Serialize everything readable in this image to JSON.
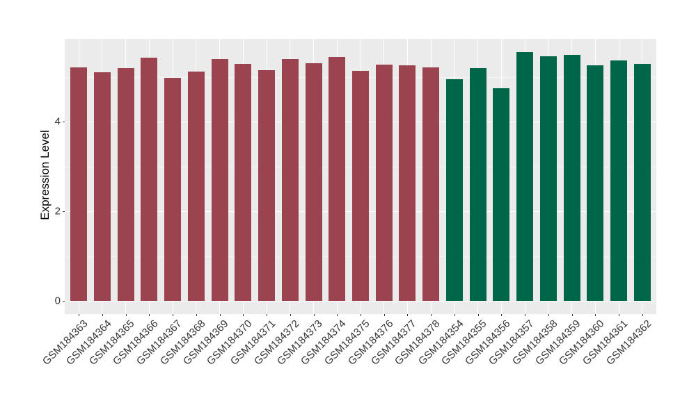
{
  "style": {
    "figure_bg": "#ffffff",
    "panel_bg": "#ebebeb",
    "grid_major": "#ffffff",
    "grid_minor": "#f5f5f5",
    "axis_text_color": "#333333",
    "axis_title_color": "#000000",
    "tick_mark_color": "#333333",
    "maroon": "#9b4450",
    "green": "#00664a"
  },
  "chart_data": {
    "type": "bar",
    "title": "",
    "xlabel": "",
    "ylabel": "Expression Level",
    "ylim": [
      -0.29,
      5.84
    ],
    "yticks": [
      0,
      2,
      4
    ],
    "y_minor_ticks": [
      1,
      3,
      5
    ],
    "grid": "ggplot2-style: white major and faint minor gridlines on gray panel",
    "legend_position": "none",
    "categories": [
      "GSM184363",
      "GSM184364",
      "GSM184365",
      "GSM184366",
      "GSM184367",
      "GSM184368",
      "GSM184369",
      "GSM184370",
      "GSM184371",
      "GSM184372",
      "GSM184373",
      "GSM184374",
      "GSM184375",
      "GSM184376",
      "GSM184377",
      "GSM184378",
      "GSM184354",
      "GSM184355",
      "GSM184356",
      "GSM184357",
      "GSM184358",
      "GSM184359",
      "GSM184360",
      "GSM184361",
      "GSM184362"
    ],
    "values": [
      5.21,
      5.1,
      5.2,
      5.43,
      4.98,
      5.11,
      5.39,
      5.28,
      5.14,
      5.4,
      5.3,
      5.44,
      5.13,
      5.27,
      5.26,
      5.21,
      4.95,
      5.19,
      4.75,
      5.55,
      5.45,
      5.49,
      5.26,
      5.37,
      5.29
    ],
    "bar_colors": [
      "#9b4450",
      "#9b4450",
      "#9b4450",
      "#9b4450",
      "#9b4450",
      "#9b4450",
      "#9b4450",
      "#9b4450",
      "#9b4450",
      "#9b4450",
      "#9b4450",
      "#9b4450",
      "#9b4450",
      "#9b4450",
      "#9b4450",
      "#9b4450",
      "#00664a",
      "#00664a",
      "#00664a",
      "#00664a",
      "#00664a",
      "#00664a",
      "#00664a",
      "#00664a",
      "#00664a"
    ]
  }
}
